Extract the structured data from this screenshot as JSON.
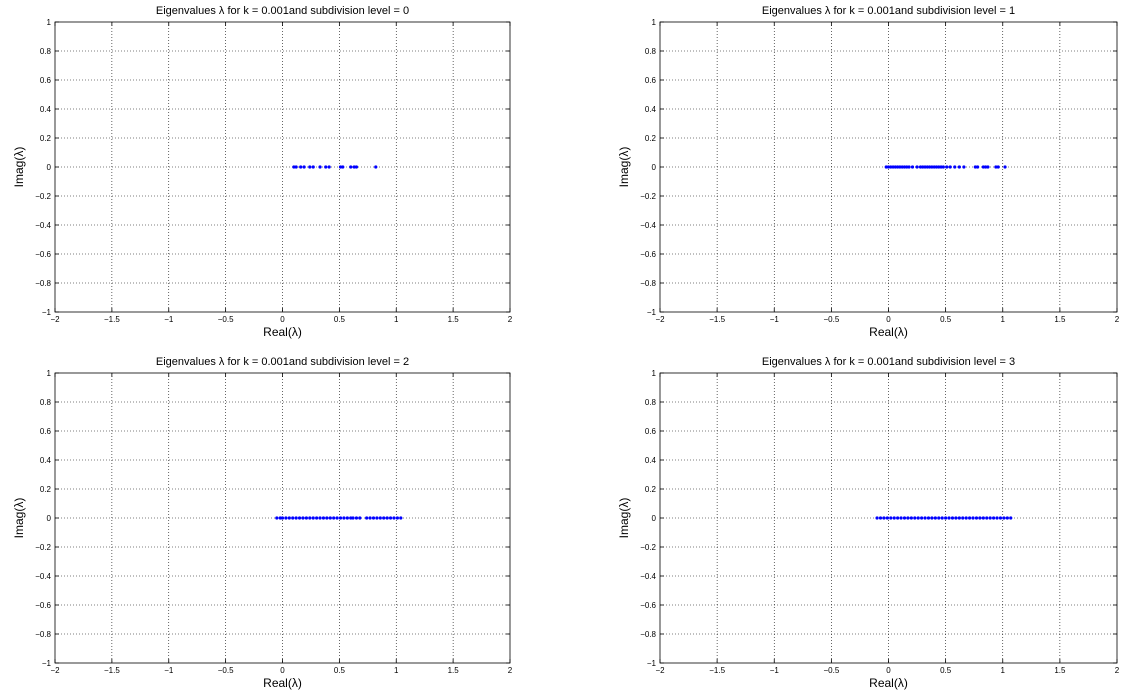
{
  "chart_data": [
    {
      "type": "scatter",
      "title": "Eigenvalues λ for k = 0.001and subdivision level = 0",
      "xlabel": "Real(λ)",
      "ylabel": "Imag(λ)",
      "xlim": [
        -2,
        2
      ],
      "ylim": [
        -1,
        1
      ],
      "xticks": [
        "−2",
        "−1.5",
        "−1",
        "−0.5",
        "0",
        "0.5",
        "1",
        "1.5",
        "2"
      ],
      "yticks": [
        "1",
        "0.8",
        "0.6",
        "0.4",
        "0.2",
        "0",
        "−0.2",
        "−0.4",
        "−0.6",
        "−0.8",
        "−1"
      ],
      "grid": true,
      "marker_color": "#0000ff",
      "x": [
        0.1,
        0.12,
        0.16,
        0.19,
        0.24,
        0.27,
        0.33,
        0.38,
        0.41,
        0.51,
        0.53,
        0.6,
        0.63,
        0.65,
        0.82
      ],
      "y": [
        0,
        0,
        0,
        0,
        0,
        0,
        0,
        0,
        0,
        0,
        0,
        0,
        0,
        0,
        0
      ]
    },
    {
      "type": "scatter",
      "title": "Eigenvalues λ for k = 0.001and subdivision level = 1",
      "xlabel": "Real(λ)",
      "ylabel": "Imag(λ)",
      "xlim": [
        -2,
        2
      ],
      "ylim": [
        -1,
        1
      ],
      "xticks": [
        "−2",
        "−1.5",
        "−1",
        "−0.5",
        "0",
        "0.5",
        "1",
        "1.5",
        "2"
      ],
      "yticks": [
        "1",
        "0.8",
        "0.6",
        "0.4",
        "0.2",
        "0",
        "−0.2",
        "−0.4",
        "−0.6",
        "−0.8",
        "−1"
      ],
      "grid": true,
      "marker_color": "#0000ff",
      "x": [
        -0.02,
        0.0,
        0.02,
        0.04,
        0.06,
        0.08,
        0.1,
        0.12,
        0.14,
        0.16,
        0.18,
        0.21,
        0.25,
        0.28,
        0.3,
        0.32,
        0.34,
        0.36,
        0.38,
        0.4,
        0.42,
        0.44,
        0.46,
        0.48,
        0.51,
        0.54,
        0.58,
        0.62,
        0.66,
        0.76,
        0.78,
        0.83,
        0.85,
        0.87,
        0.94,
        0.96,
        1.02
      ],
      "y": [
        0,
        0,
        0,
        0,
        0,
        0,
        0,
        0,
        0,
        0,
        0,
        0,
        0,
        0,
        0,
        0,
        0,
        0,
        0,
        0,
        0,
        0,
        0,
        0,
        0,
        0,
        0,
        0,
        0,
        0,
        0,
        0,
        0,
        0,
        0,
        0,
        0
      ]
    },
    {
      "type": "scatter",
      "title": "Eigenvalues λ for k = 0.001and subdivision level = 2",
      "xlabel": "Real(λ)",
      "ylabel": "Imag(λ)",
      "xlim": [
        -2,
        2
      ],
      "ylim": [
        -1,
        1
      ],
      "xticks": [
        "−2",
        "−1.5",
        "−1",
        "−0.5",
        "0",
        "0.5",
        "1",
        "1.5",
        "2"
      ],
      "yticks": [
        "1",
        "0.8",
        "0.6",
        "0.4",
        "0.2",
        "0",
        "−0.2",
        "−0.4",
        "−0.6",
        "−0.8",
        "−1"
      ],
      "grid": true,
      "marker_color": "#0000ff",
      "x": [
        -0.05,
        -0.02,
        0.0,
        0.03,
        0.06,
        0.09,
        0.12,
        0.15,
        0.18,
        0.21,
        0.24,
        0.27,
        0.3,
        0.33,
        0.36,
        0.39,
        0.42,
        0.45,
        0.48,
        0.51,
        0.54,
        0.57,
        0.6,
        0.62,
        0.65,
        0.68,
        0.74,
        0.77,
        0.8,
        0.83,
        0.86,
        0.89,
        0.92,
        0.95,
        0.98,
        1.01,
        1.04
      ],
      "y": [
        0,
        0,
        0,
        0,
        0,
        0,
        0,
        0,
        0,
        0,
        0,
        0,
        0,
        0,
        0,
        0,
        0,
        0,
        0,
        0,
        0,
        0,
        0,
        0,
        0,
        0,
        0,
        0,
        0,
        0,
        0,
        0,
        0,
        0,
        0,
        0,
        0
      ]
    },
    {
      "type": "scatter",
      "title": "Eigenvalues λ for k = 0.001and subdivision level = 3",
      "xlabel": "Real(λ)",
      "ylabel": "Imag(λ)",
      "xlim": [
        -2,
        2
      ],
      "ylim": [
        -1,
        1
      ],
      "xticks": [
        "−2",
        "−1.5",
        "−1",
        "−0.5",
        "0",
        "0.5",
        "1",
        "1.5",
        "2"
      ],
      "yticks": [
        "1",
        "0.8",
        "0.6",
        "0.4",
        "0.2",
        "0",
        "−0.2",
        "−0.4",
        "−0.6",
        "−0.8",
        "−1"
      ],
      "grid": true,
      "marker_color": "#0000ff",
      "x": [
        -0.1,
        -0.07,
        -0.04,
        -0.01,
        0.02,
        0.05,
        0.08,
        0.11,
        0.14,
        0.17,
        0.2,
        0.23,
        0.26,
        0.29,
        0.32,
        0.35,
        0.38,
        0.41,
        0.44,
        0.47,
        0.5,
        0.53,
        0.56,
        0.59,
        0.62,
        0.65,
        0.68,
        0.71,
        0.74,
        0.77,
        0.8,
        0.83,
        0.86,
        0.89,
        0.92,
        0.95,
        0.98,
        1.01,
        1.04,
        1.07
      ],
      "y": [
        0,
        0,
        0,
        0,
        0,
        0,
        0,
        0,
        0,
        0,
        0,
        0,
        0,
        0,
        0,
        0,
        0,
        0,
        0,
        0,
        0,
        0,
        0,
        0,
        0,
        0,
        0,
        0,
        0,
        0,
        0,
        0,
        0,
        0,
        0,
        0,
        0,
        0,
        0,
        0
      ]
    }
  ]
}
